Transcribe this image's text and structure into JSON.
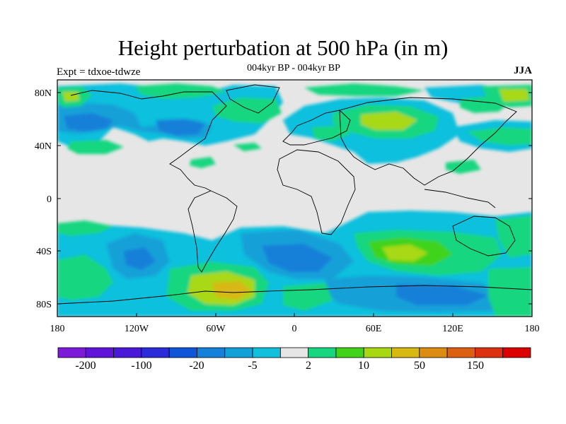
{
  "header": {
    "title": "Height perturbation at 500 hPa (in m)",
    "subtitle": "004kyr BP - 004kyr BP",
    "left_label": "Expt = tdxoe-tdwze",
    "right_label": "JJA"
  },
  "map": {
    "type": "filled-contour",
    "background": "#e6e6e6",
    "lat_ticks": [
      "80N",
      "40N",
      "0",
      "40S",
      "80S"
    ],
    "lon_ticks": [
      "180",
      "120W",
      "60W",
      "0",
      "60E",
      "120E",
      "180"
    ]
  },
  "colorbar": {
    "colors": [
      "#7d1ad9",
      "#6014d9",
      "#4a18d9",
      "#2b2bd9",
      "#0f55d9",
      "#1580d9",
      "#12a0d8",
      "#10c0dd",
      "#e6e6e6",
      "#18d67f",
      "#40d31a",
      "#a8d812",
      "#d8b812",
      "#dd8c12",
      "#dd6010",
      "#dd3010",
      "#dd0000"
    ],
    "labels": [
      "-200",
      "-100",
      "-20",
      "-5",
      "2",
      "10",
      "50",
      "150"
    ]
  }
}
